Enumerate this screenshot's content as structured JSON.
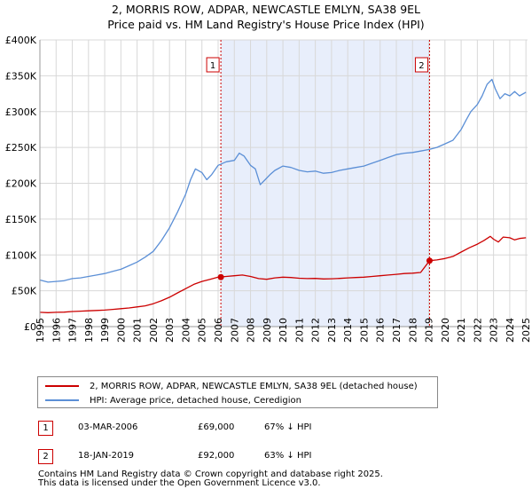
{
  "title_line1": "2, MORRIS ROW, ADPAR, NEWCASTLE EMLYN, SA38 9EL",
  "title_line2": "Price paid vs. HM Land Registry's House Price Index (HPI)",
  "chart_data": {
    "type": "line",
    "title": "2, MORRIS ROW, ADPAR, NEWCASTLE EMLYN, SA38 9EL — Price paid vs. HM Land Registry's House Price Index (HPI)",
    "xlabel": "",
    "ylabel": "",
    "xlim": [
      1995.0,
      2025.1
    ],
    "ylim": [
      0,
      400000
    ],
    "y_ticks": [
      {
        "value": 0,
        "label": "£0"
      },
      {
        "value": 50000,
        "label": "£50K"
      },
      {
        "value": 100000,
        "label": "£100K"
      },
      {
        "value": 150000,
        "label": "£150K"
      },
      {
        "value": 200000,
        "label": "£200K"
      },
      {
        "value": 250000,
        "label": "£250K"
      },
      {
        "value": 300000,
        "label": "£300K"
      },
      {
        "value": 350000,
        "label": "£350K"
      },
      {
        "value": 400000,
        "label": "£400K"
      }
    ],
    "x_ticks": [
      "1995",
      "1996",
      "1997",
      "1998",
      "1999",
      "2000",
      "2001",
      "2002",
      "2003",
      "2004",
      "2005",
      "2006",
      "2007",
      "2008",
      "2009",
      "2010",
      "2011",
      "2012",
      "2013",
      "2014",
      "2015",
      "2016",
      "2017",
      "2018",
      "2019",
      "2020",
      "2021",
      "2022",
      "2023",
      "2024",
      "2025"
    ],
    "grid": true,
    "shaded_region": [
      2006.17,
      2019.05
    ],
    "series": [
      {
        "name": "HPI: Average price, detached house, Ceredigion",
        "color": "#5b8fd6",
        "x": [
          1995.0,
          1995.5,
          1996.0,
          1996.5,
          1997.0,
          1997.5,
          1998.0,
          1998.5,
          1999.0,
          1999.5,
          2000.0,
          2000.5,
          2001.0,
          2001.5,
          2002.0,
          2002.5,
          2003.0,
          2003.5,
          2004.0,
          2004.3,
          2004.6,
          2005.0,
          2005.3,
          2005.6,
          2006.0,
          2006.5,
          2007.0,
          2007.3,
          2007.6,
          2008.0,
          2008.3,
          2008.6,
          2008.9,
          2009.2,
          2009.5,
          2010.0,
          2010.5,
          2011.0,
          2011.5,
          2012.0,
          2012.5,
          2013.0,
          2013.5,
          2014.0,
          2014.5,
          2015.0,
          2015.5,
          2016.0,
          2016.5,
          2017.0,
          2017.5,
          2018.0,
          2018.5,
          2019.0,
          2019.5,
          2020.0,
          2020.5,
          2021.0,
          2021.3,
          2021.6,
          2022.0,
          2022.3,
          2022.6,
          2022.9,
          2023.1,
          2023.4,
          2023.7,
          2024.0,
          2024.3,
          2024.6,
          2025.0
        ],
        "values": [
          65000,
          62000,
          63000,
          64000,
          67000,
          68000,
          70000,
          72000,
          74000,
          77000,
          80000,
          85000,
          90000,
          97000,
          105000,
          120000,
          138000,
          160000,
          185000,
          205000,
          220000,
          215000,
          205000,
          212000,
          225000,
          230000,
          232000,
          242000,
          238000,
          225000,
          220000,
          198000,
          205000,
          212000,
          218000,
          224000,
          222000,
          218000,
          216000,
          217000,
          214000,
          215000,
          218000,
          220000,
          222000,
          224000,
          228000,
          232000,
          236000,
          240000,
          242000,
          243000,
          245000,
          247000,
          250000,
          255000,
          260000,
          275000,
          288000,
          300000,
          310000,
          322000,
          338000,
          345000,
          332000,
          318000,
          325000,
          322000,
          328000,
          322000,
          327000
        ]
      },
      {
        "name": "2, MORRIS ROW, ADPAR, NEWCASTLE EMLYN, SA38 9EL (detached house)",
        "color": "#cc0000",
        "x": [
          1995.0,
          1995.5,
          1996.0,
          1996.5,
          1997.0,
          1997.5,
          1998.0,
          1998.5,
          1999.0,
          1999.5,
          2000.0,
          2000.5,
          2001.0,
          2001.5,
          2002.0,
          2002.5,
          2003.0,
          2003.5,
          2004.0,
          2004.5,
          2005.0,
          2005.5,
          2006.0,
          2006.5,
          2007.0,
          2007.5,
          2008.0,
          2008.5,
          2009.0,
          2009.5,
          2010.0,
          2010.5,
          2011.0,
          2011.5,
          2012.0,
          2012.5,
          2013.0,
          2013.5,
          2014.0,
          2014.5,
          2015.0,
          2015.5,
          2016.0,
          2016.5,
          2017.0,
          2017.5,
          2018.0,
          2018.5,
          2019.05,
          2019.5,
          2020.0,
          2020.5,
          2021.0,
          2021.5,
          2022.0,
          2022.4,
          2022.8,
          2023.0,
          2023.3,
          2023.6,
          2024.0,
          2024.3,
          2024.6,
          2025.0
        ],
        "values": [
          20000,
          19500,
          20000,
          20200,
          21000,
          21500,
          22000,
          22500,
          23000,
          24000,
          25000,
          26000,
          27500,
          29000,
          32000,
          36000,
          41000,
          47000,
          53000,
          59000,
          63000,
          66000,
          69000,
          70000,
          71000,
          72000,
          70000,
          67000,
          66000,
          68000,
          69000,
          68500,
          67500,
          67000,
          67200,
          66500,
          66800,
          67300,
          68000,
          68500,
          69000,
          70000,
          71000,
          72000,
          73000,
          74000,
          74500,
          75500,
          92000,
          93000,
          95000,
          98000,
          104000,
          110000,
          115000,
          120000,
          126000,
          122000,
          118000,
          125000,
          124000,
          121000,
          123000,
          124000
        ]
      }
    ],
    "annotations": [
      {
        "label": "1",
        "x": 2006.17,
        "y": 69000
      },
      {
        "label": "2",
        "x": 2019.05,
        "y": 92000
      }
    ]
  },
  "legend": {
    "items": [
      {
        "label": "2, MORRIS ROW, ADPAR, NEWCASTLE EMLYN, SA38 9EL (detached house)",
        "color": "#cc0000"
      },
      {
        "label": "HPI: Average price, detached house, Ceredigion",
        "color": "#5b8fd6"
      }
    ]
  },
  "sales": [
    {
      "num": "1",
      "date": "03-MAR-2006",
      "price": "£69,000",
      "hpi": "67% ↓ HPI"
    },
    {
      "num": "2",
      "date": "18-JAN-2019",
      "price": "£92,000",
      "hpi": "63% ↓ HPI"
    }
  ],
  "footer": {
    "line1": "Contains HM Land Registry data © Crown copyright and database right 2025.",
    "line2": "This data is licensed under the Open Government Licence v3.0."
  }
}
